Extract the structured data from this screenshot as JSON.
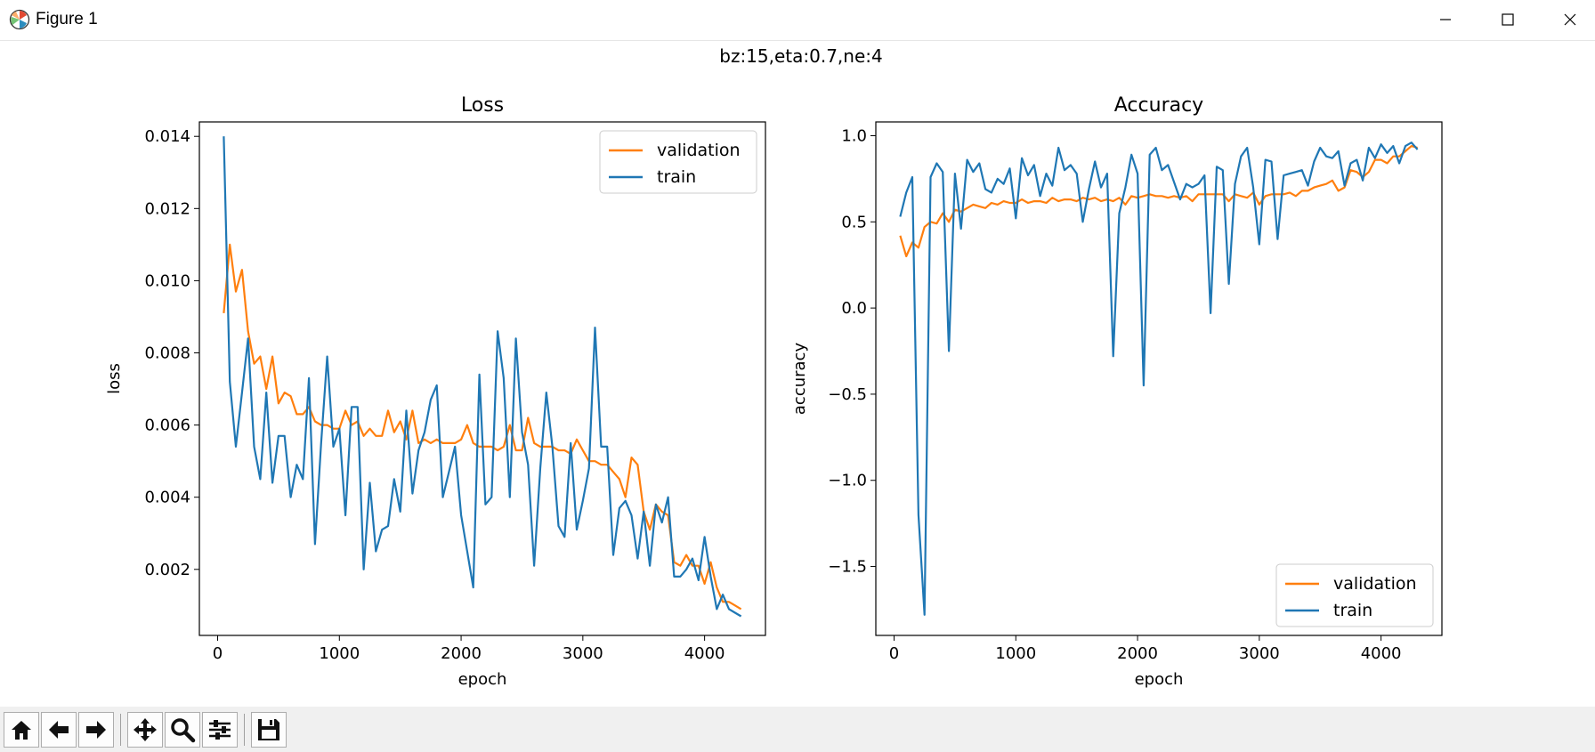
{
  "window": {
    "title": "Figure 1"
  },
  "figure": {
    "suptitle": "bz:15,eta:0.7,ne:4"
  },
  "colors": {
    "train": "#1f77b4",
    "validation": "#ff7f0e"
  },
  "toolbar": {
    "buttons": [
      "home-icon",
      "back-arrow-icon",
      "forward-arrow-icon",
      "pan-icon",
      "zoom-icon",
      "configure-subplots-icon",
      "save-icon"
    ]
  },
  "chart_data": [
    {
      "type": "line",
      "title": "Loss",
      "xlabel": "epoch",
      "ylabel": "loss",
      "xlim": [
        -150,
        4500
      ],
      "ylim": [
        0.00017,
        0.0144
      ],
      "xticks": [
        0,
        1000,
        2000,
        3000,
        4000
      ],
      "xtick_labels": [
        "0",
        "1000",
        "2000",
        "3000",
        "4000"
      ],
      "yticks": [
        0.002,
        0.004,
        0.006,
        0.008,
        0.01,
        0.012,
        0.014
      ],
      "ytick_labels": [
        "0.002",
        "0.004",
        "0.006",
        "0.008",
        "0.010",
        "0.012",
        "0.014"
      ],
      "legend_loc": "upper right",
      "series": [
        {
          "name": "validation",
          "color": "#ff7f0e",
          "x": [
            50,
            100,
            150,
            200,
            250,
            300,
            350,
            400,
            450,
            500,
            550,
            600,
            650,
            700,
            750,
            800,
            850,
            900,
            950,
            1000,
            1050,
            1100,
            1150,
            1200,
            1250,
            1300,
            1350,
            1400,
            1450,
            1500,
            1550,
            1600,
            1650,
            1700,
            1750,
            1800,
            1850,
            1900,
            1950,
            2000,
            2050,
            2100,
            2150,
            2200,
            2250,
            2300,
            2350,
            2400,
            2450,
            2500,
            2550,
            2600,
            2650,
            2700,
            2750,
            2800,
            2850,
            2900,
            2950,
            3000,
            3050,
            3100,
            3150,
            3200,
            3250,
            3300,
            3350,
            3400,
            3450,
            3500,
            3550,
            3600,
            3650,
            3700,
            3750,
            3800,
            3850,
            3900,
            3950,
            4000,
            4050,
            4100,
            4150,
            4200,
            4250,
            4300
          ],
          "y": [
            0.0091,
            0.011,
            0.0097,
            0.0103,
            0.0086,
            0.0077,
            0.0079,
            0.007,
            0.0079,
            0.0066,
            0.0069,
            0.0068,
            0.0063,
            0.0063,
            0.0065,
            0.0061,
            0.006,
            0.006,
            0.0059,
            0.0059,
            0.0064,
            0.006,
            0.0061,
            0.0057,
            0.0059,
            0.0057,
            0.0057,
            0.0064,
            0.0058,
            0.0061,
            0.0056,
            0.0064,
            0.0055,
            0.0056,
            0.0055,
            0.0056,
            0.0055,
            0.0055,
            0.0055,
            0.0056,
            0.006,
            0.0055,
            0.0054,
            0.0054,
            0.0054,
            0.0053,
            0.0054,
            0.006,
            0.0053,
            0.0053,
            0.0062,
            0.0055,
            0.0054,
            0.0054,
            0.0054,
            0.0053,
            0.0053,
            0.0052,
            0.0056,
            0.0053,
            0.005,
            0.005,
            0.0049,
            0.0049,
            0.0047,
            0.0045,
            0.004,
            0.0051,
            0.0049,
            0.0036,
            0.0031,
            0.0038,
            0.0036,
            0.0035,
            0.0022,
            0.0021,
            0.0024,
            0.0021,
            0.0021,
            0.0016,
            0.0022,
            0.0015,
            0.0011,
            0.0011,
            0.001,
            0.0009
          ]
        },
        {
          "name": "train",
          "color": "#1f77b4",
          "x": [
            50,
            100,
            150,
            200,
            250,
            300,
            350,
            400,
            450,
            500,
            550,
            600,
            650,
            700,
            750,
            800,
            850,
            900,
            950,
            1000,
            1050,
            1100,
            1150,
            1200,
            1250,
            1300,
            1350,
            1400,
            1450,
            1500,
            1550,
            1600,
            1650,
            1700,
            1750,
            1800,
            1850,
            1900,
            1950,
            2000,
            2050,
            2100,
            2150,
            2200,
            2250,
            2300,
            2350,
            2400,
            2450,
            2500,
            2550,
            2600,
            2650,
            2700,
            2750,
            2800,
            2850,
            2900,
            2950,
            3000,
            3050,
            3100,
            3150,
            3200,
            3250,
            3300,
            3350,
            3400,
            3450,
            3500,
            3550,
            3600,
            3650,
            3700,
            3750,
            3800,
            3850,
            3900,
            3950,
            4000,
            4050,
            4100,
            4150,
            4200,
            4250,
            4300
          ],
          "y": [
            0.014,
            0.0072,
            0.0054,
            0.0069,
            0.0084,
            0.0054,
            0.0045,
            0.0069,
            0.0044,
            0.0057,
            0.0057,
            0.004,
            0.0049,
            0.0045,
            0.0073,
            0.0027,
            0.0055,
            0.0079,
            0.0054,
            0.0059,
            0.0035,
            0.0065,
            0.0065,
            0.002,
            0.0044,
            0.0025,
            0.0031,
            0.0032,
            0.0045,
            0.0036,
            0.0064,
            0.0041,
            0.0053,
            0.0058,
            0.0067,
            0.0071,
            0.004,
            0.0047,
            0.0054,
            0.0035,
            0.0025,
            0.0015,
            0.0074,
            0.0038,
            0.004,
            0.0086,
            0.0073,
            0.004,
            0.0084,
            0.0058,
            0.0049,
            0.0021,
            0.0048,
            0.0069,
            0.0054,
            0.0032,
            0.0029,
            0.0055,
            0.0031,
            0.0039,
            0.0048,
            0.0087,
            0.0054,
            0.0054,
            0.0024,
            0.0037,
            0.0039,
            0.0035,
            0.0023,
            0.0036,
            0.0021,
            0.0038,
            0.0033,
            0.004,
            0.0018,
            0.0018,
            0.002,
            0.0023,
            0.0017,
            0.0029,
            0.0018,
            0.0009,
            0.0013,
            0.0009,
            0.0008,
            0.0007
          ]
        }
      ]
    },
    {
      "type": "line",
      "title": "Accuracy",
      "xlabel": "epoch",
      "ylabel": "accuracy",
      "xlim": [
        -150,
        4500
      ],
      "ylim": [
        -1.9,
        1.08
      ],
      "xticks": [
        0,
        1000,
        2000,
        3000,
        4000
      ],
      "xtick_labels": [
        "0",
        "1000",
        "2000",
        "3000",
        "4000"
      ],
      "yticks": [
        -1.5,
        -1.0,
        -0.5,
        0.0,
        0.5,
        1.0
      ],
      "ytick_labels": [
        "−1.5",
        "−1.0",
        "−0.5",
        "0.0",
        "0.5",
        "1.0"
      ],
      "legend_loc": "lower right",
      "series": [
        {
          "name": "validation",
          "color": "#ff7f0e",
          "x": [
            50,
            100,
            150,
            200,
            250,
            300,
            350,
            400,
            450,
            500,
            550,
            600,
            650,
            700,
            750,
            800,
            850,
            900,
            950,
            1000,
            1050,
            1100,
            1150,
            1200,
            1250,
            1300,
            1350,
            1400,
            1450,
            1500,
            1550,
            1600,
            1650,
            1700,
            1750,
            1800,
            1850,
            1900,
            1950,
            2000,
            2050,
            2100,
            2150,
            2200,
            2250,
            2300,
            2350,
            2400,
            2450,
            2500,
            2550,
            2600,
            2650,
            2700,
            2750,
            2800,
            2850,
            2900,
            2950,
            3000,
            3050,
            3100,
            3150,
            3200,
            3250,
            3300,
            3350,
            3400,
            3450,
            3500,
            3550,
            3600,
            3650,
            3700,
            3750,
            3800,
            3850,
            3900,
            3950,
            4000,
            4050,
            4100,
            4150,
            4200,
            4250,
            4300
          ],
          "y": [
            0.42,
            0.3,
            0.38,
            0.35,
            0.47,
            0.5,
            0.49,
            0.55,
            0.5,
            0.57,
            0.56,
            0.58,
            0.6,
            0.59,
            0.58,
            0.61,
            0.6,
            0.62,
            0.61,
            0.61,
            0.63,
            0.61,
            0.62,
            0.62,
            0.61,
            0.64,
            0.62,
            0.63,
            0.63,
            0.62,
            0.64,
            0.63,
            0.64,
            0.62,
            0.63,
            0.62,
            0.64,
            0.6,
            0.65,
            0.64,
            0.65,
            0.66,
            0.65,
            0.65,
            0.64,
            0.65,
            0.64,
            0.65,
            0.62,
            0.66,
            0.66,
            0.66,
            0.66,
            0.66,
            0.62,
            0.66,
            0.65,
            0.64,
            0.67,
            0.6,
            0.65,
            0.66,
            0.66,
            0.66,
            0.67,
            0.65,
            0.68,
            0.68,
            0.7,
            0.71,
            0.72,
            0.74,
            0.68,
            0.7,
            0.8,
            0.79,
            0.76,
            0.79,
            0.86,
            0.86,
            0.84,
            0.88,
            0.88,
            0.91,
            0.94,
            0.93
          ]
        },
        {
          "name": "train",
          "color": "#1f77b4",
          "x": [
            50,
            100,
            150,
            200,
            250,
            300,
            350,
            400,
            450,
            500,
            550,
            600,
            650,
            700,
            750,
            800,
            850,
            900,
            950,
            1000,
            1050,
            1100,
            1150,
            1200,
            1250,
            1300,
            1350,
            1400,
            1450,
            1500,
            1550,
            1600,
            1650,
            1700,
            1750,
            1800,
            1850,
            1900,
            1950,
            2000,
            2050,
            2100,
            2150,
            2200,
            2250,
            2300,
            2350,
            2400,
            2450,
            2500,
            2550,
            2600,
            2650,
            2700,
            2750,
            2800,
            2850,
            2900,
            2950,
            3000,
            3050,
            3100,
            3150,
            3200,
            3250,
            3300,
            3350,
            3400,
            3450,
            3500,
            3550,
            3600,
            3650,
            3700,
            3750,
            3800,
            3850,
            3900,
            3950,
            4000,
            4050,
            4100,
            4150,
            4200,
            4250,
            4300
          ],
          "y": [
            0.53,
            0.67,
            0.76,
            -1.2,
            -1.78,
            0.76,
            0.84,
            0.79,
            -0.25,
            0.78,
            0.46,
            0.86,
            0.79,
            0.84,
            0.69,
            0.67,
            0.75,
            0.72,
            0.81,
            0.52,
            0.87,
            0.77,
            0.83,
            0.65,
            0.78,
            0.71,
            0.93,
            0.8,
            0.83,
            0.78,
            0.5,
            0.69,
            0.85,
            0.7,
            0.78,
            -0.28,
            0.55,
            0.7,
            0.89,
            0.78,
            -0.45,
            0.89,
            0.93,
            0.8,
            0.83,
            0.73,
            0.63,
            0.72,
            0.7,
            0.72,
            0.77,
            -0.03,
            0.82,
            0.8,
            0.14,
            0.72,
            0.88,
            0.93,
            0.7,
            0.37,
            0.86,
            0.85,
            0.4,
            0.77,
            0.78,
            0.79,
            0.8,
            0.71,
            0.85,
            0.93,
            0.88,
            0.87,
            0.91,
            0.71,
            0.84,
            0.86,
            0.74,
            0.93,
            0.87,
            0.95,
            0.9,
            0.94,
            0.84,
            0.94,
            0.96,
            0.92
          ]
        }
      ]
    }
  ]
}
